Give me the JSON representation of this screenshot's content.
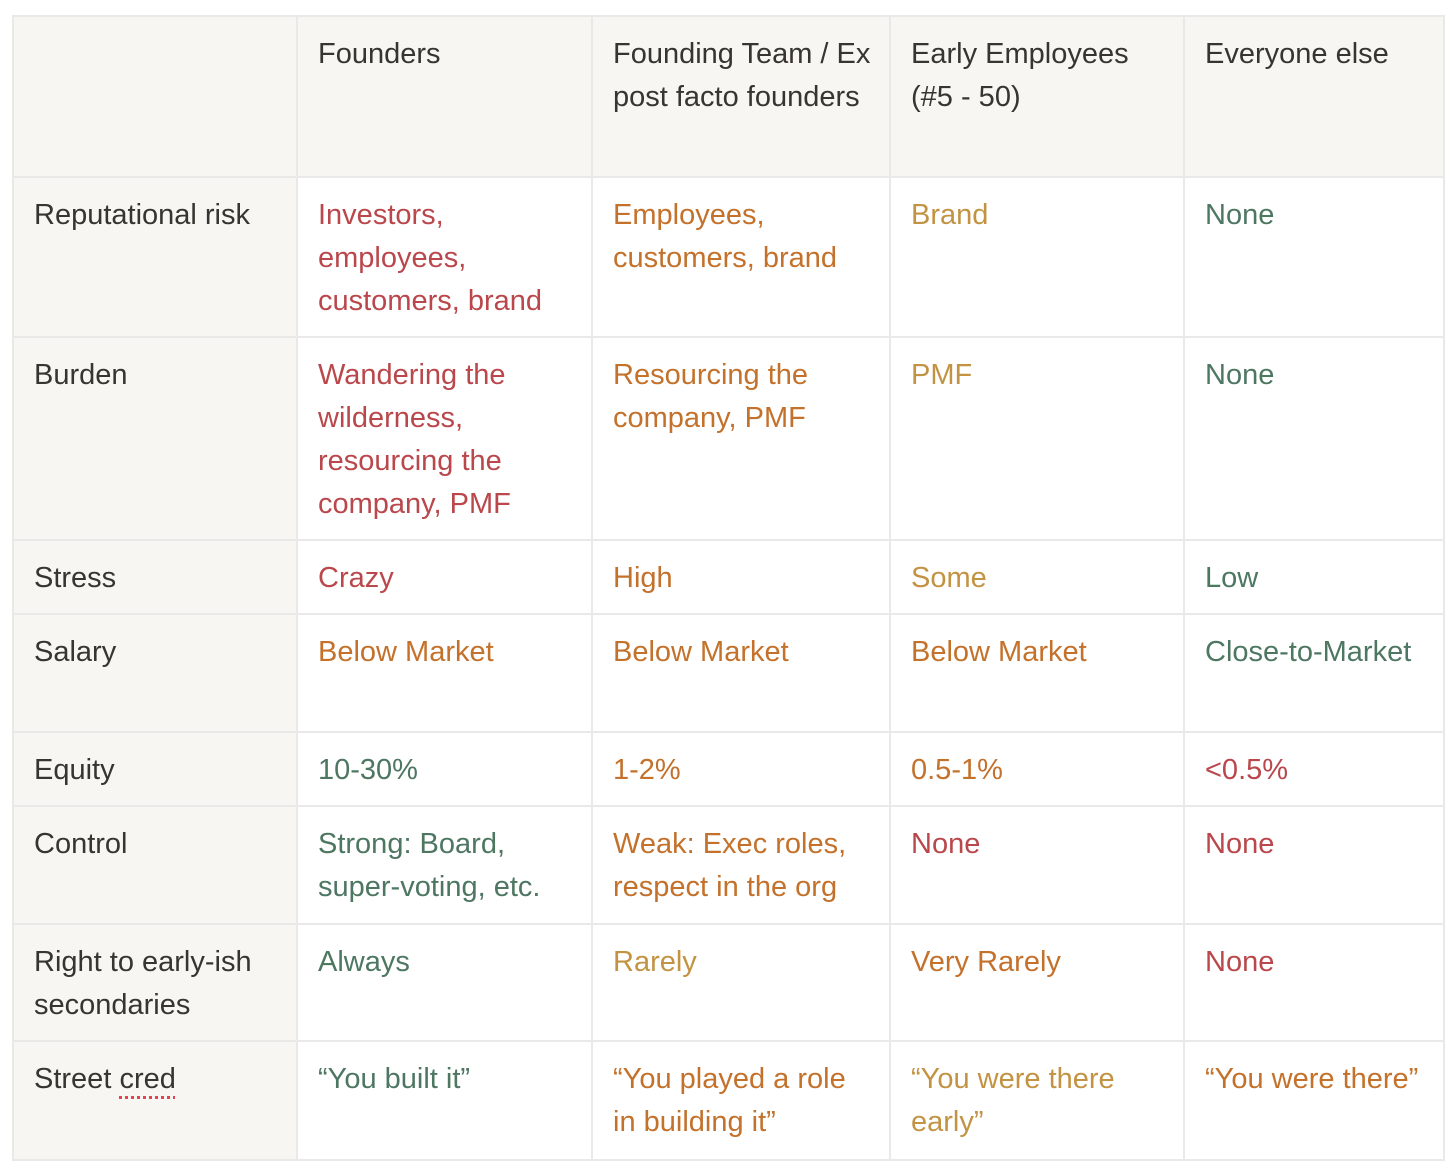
{
  "colors": {
    "red": "#b9474b",
    "orange": "#c3712b",
    "yellow": "#c29343",
    "green": "#4e7762",
    "header_bg": "#f7f6f3",
    "border": "#e9e9e7"
  },
  "headers": [
    "",
    "Founders",
    "Founding Team / Ex post facto founders",
    "Early Employees (#5 - 50)",
    "Everyone else"
  ],
  "rows": [
    {
      "label": "Reputational risk",
      "cells": [
        {
          "text": "Investors, employees, customers, brand",
          "color": "red"
        },
        {
          "text": "Employees, customers, brand",
          "color": "orange"
        },
        {
          "text": "Brand",
          "color": "yellow"
        },
        {
          "text": "None",
          "color": "green"
        }
      ]
    },
    {
      "label": "Burden",
      "cells": [
        {
          "text": "Wandering the wilderness, resourcing the company, PMF",
          "color": "red"
        },
        {
          "text": "Resourcing the company, PMF",
          "color": "orange"
        },
        {
          "text": "PMF",
          "color": "yellow"
        },
        {
          "text": "None",
          "color": "green"
        }
      ]
    },
    {
      "label": "Stress",
      "cells": [
        {
          "text": "Crazy",
          "color": "red"
        },
        {
          "text": "High",
          "color": "orange"
        },
        {
          "text": "Some",
          "color": "yellow"
        },
        {
          "text": "Low",
          "color": "green"
        }
      ]
    },
    {
      "label": "Salary",
      "cells": [
        {
          "text": "Below Market",
          "color": "orange"
        },
        {
          "text": "Below Market",
          "color": "orange"
        },
        {
          "text": "Below Market",
          "color": "orange"
        },
        {
          "text": "Close-to-Market",
          "color": "green"
        }
      ]
    },
    {
      "label": "Equity",
      "cells": [
        {
          "text": "10-30%",
          "color": "green"
        },
        {
          "text": "1-2%",
          "color": "orange"
        },
        {
          "text": "0.5-1%",
          "color": "orange"
        },
        {
          "text": "<0.5%",
          "color": "red"
        }
      ]
    },
    {
      "label": "Control",
      "cells": [
        {
          "text": "Strong: Board, super-voting, etc.",
          "color": "green"
        },
        {
          "text": "Weak: Exec roles, respect in the org",
          "color": "orange"
        },
        {
          "text": "None",
          "color": "red"
        },
        {
          "text": "None",
          "color": "red"
        }
      ]
    },
    {
      "label": "Right to early-ish secondaries",
      "cells": [
        {
          "text": "Always",
          "color": "green"
        },
        {
          "text": "Rarely",
          "color": "yellow"
        },
        {
          "text": "Very Rarely",
          "color": "orange"
        },
        {
          "text": "None",
          "color": "red"
        }
      ]
    },
    {
      "label_pre": "Street ",
      "label_flagged": "cred",
      "cells": [
        {
          "text": "“You built it”",
          "color": "green"
        },
        {
          "text": "“You played a role in building it”",
          "color": "orange"
        },
        {
          "text": "“You were there early”",
          "color": "yellow"
        },
        {
          "text": "“You were there”",
          "color": "orange"
        }
      ]
    }
  ]
}
